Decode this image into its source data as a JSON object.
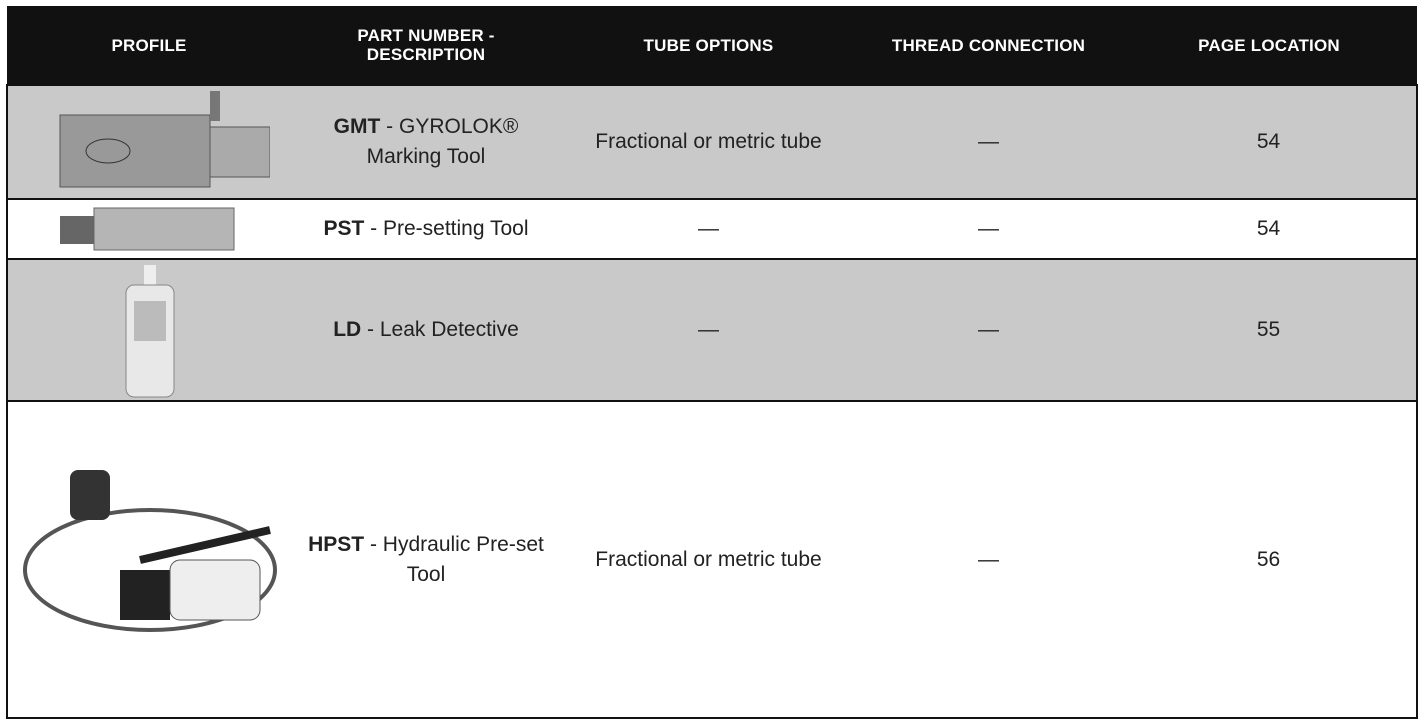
{
  "table": {
    "header": [
      "PROFILE",
      "PART NUMBER - DESCRIPTION",
      "TUBE OPTIONS",
      "THREAD CONNECTION",
      "PAGE LOCATION"
    ],
    "rows": [
      {
        "code": "GMT",
        "description": " - GYROLOK® Marking Tool",
        "tube_options": "Fractional or metric tube",
        "thread_connection": "—",
        "page_location": 54
      },
      {
        "code": "PST",
        "description": " - Pre-setting Tool",
        "tube_options": "—",
        "thread_connection": "—",
        "page_location": 54
      },
      {
        "code": "LD",
        "description": " - Leak Detective",
        "tube_options": "—",
        "thread_connection": "—",
        "page_location": 55
      },
      {
        "code": "HPST",
        "description": " - Hydraulic Pre-set Tool",
        "tube_options": "Fractional or metric tube",
        "thread_connection": "—",
        "page_location": 56
      }
    ]
  }
}
